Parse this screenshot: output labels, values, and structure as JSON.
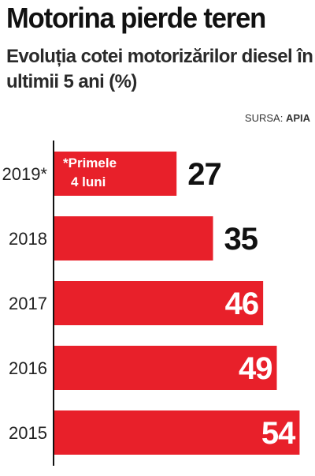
{
  "header": {
    "title": "Motorina pierde teren",
    "subtitle": "Evoluția cotei motorizărilor diesel în ultimii 5 ani (%)"
  },
  "source": {
    "label": "SURSA: ",
    "name": "APIA"
  },
  "note": {
    "line1": "*Primele",
    "line2": "4 luni"
  },
  "colors": {
    "bar": "#e8202a",
    "axis": "#111111",
    "value_outside": "#111111",
    "value_inside": "#ffffff"
  },
  "chart_data": {
    "type": "bar",
    "orientation": "horizontal",
    "title": "Motorina pierde teren",
    "subtitle": "Evoluția cotei motorizărilor diesel în ultimii 5 ani (%)",
    "categories": [
      "2019*",
      "2018",
      "2017",
      "2016",
      "2015"
    ],
    "values": [
      27,
      35,
      46,
      49,
      54
    ],
    "xlim": [
      0,
      56
    ],
    "grid": false,
    "legend": "none"
  }
}
